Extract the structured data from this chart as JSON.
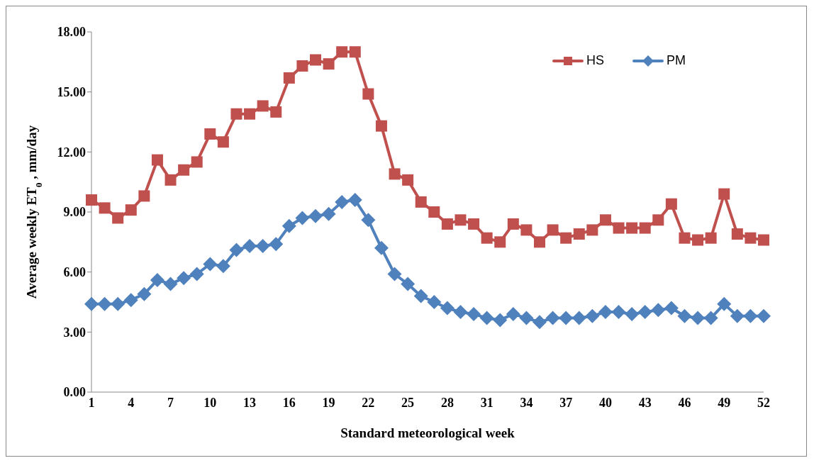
{
  "chart_data": {
    "type": "line",
    "xlabel": "Standard meteorological week",
    "ylabel": "Average weekly ET$_{0}$ , mm/day",
    "categories": [
      "1",
      null,
      null,
      "4",
      null,
      null,
      "7",
      null,
      null,
      "10",
      null,
      null,
      "13",
      null,
      null,
      "16",
      null,
      null,
      "19",
      null,
      null,
      "22",
      null,
      null,
      "25",
      null,
      null,
      "28",
      null,
      null,
      "31",
      null,
      null,
      "34",
      null,
      null,
      "37",
      null,
      null,
      "40",
      null,
      null,
      "43",
      null,
      null,
      "46",
      null,
      null,
      "49",
      null,
      null,
      "52"
    ],
    "series": [
      {
        "name": "HS",
        "color": "#c0504d",
        "marker": "square",
        "values": [
          9.6,
          9.2,
          8.7,
          9.1,
          9.8,
          11.6,
          10.6,
          11.1,
          11.5,
          12.9,
          12.5,
          13.9,
          13.9,
          14.3,
          14.0,
          15.7,
          16.3,
          16.6,
          16.4,
          17.0,
          17.0,
          14.9,
          13.3,
          10.9,
          10.6,
          9.5,
          9.0,
          8.4,
          8.6,
          8.4,
          7.7,
          7.5,
          8.4,
          8.1,
          7.5,
          8.1,
          7.7,
          7.9,
          8.1,
          8.6,
          8.2,
          8.2,
          8.2,
          8.6,
          9.4,
          7.7,
          7.6,
          7.7,
          9.9,
          7.9,
          7.7,
          7.6
        ]
      },
      {
        "name": "PM",
        "color": "#4f81bd",
        "marker": "diamond",
        "values": [
          4.4,
          4.4,
          4.4,
          4.6,
          4.9,
          5.6,
          5.4,
          5.7,
          5.9,
          6.4,
          6.3,
          7.1,
          7.3,
          7.3,
          7.4,
          8.3,
          8.7,
          8.8,
          8.9,
          9.5,
          9.6,
          8.6,
          7.2,
          5.9,
          5.4,
          4.8,
          4.5,
          4.2,
          4.0,
          3.9,
          3.7,
          3.6,
          3.9,
          3.7,
          3.5,
          3.7,
          3.7,
          3.7,
          3.8,
          4.0,
          4.0,
          3.9,
          4.0,
          4.1,
          4.2,
          3.8,
          3.7,
          3.7,
          4.4,
          3.8,
          3.8,
          3.8
        ]
      }
    ],
    "ylim": [
      0,
      18
    ],
    "yticks": [
      {
        "value": 0,
        "label": "0.00"
      },
      {
        "value": 3,
        "label": "3.00"
      },
      {
        "value": 6,
        "label": "6.00"
      },
      {
        "value": 9,
        "label": "9.00"
      },
      {
        "value": 12,
        "label": "12.00"
      },
      {
        "value": 15,
        "label": "15.00"
      },
      {
        "value": 18,
        "label": "18.00"
      }
    ],
    "grid": false,
    "legend": "top right",
    "line_style": "solid"
  }
}
